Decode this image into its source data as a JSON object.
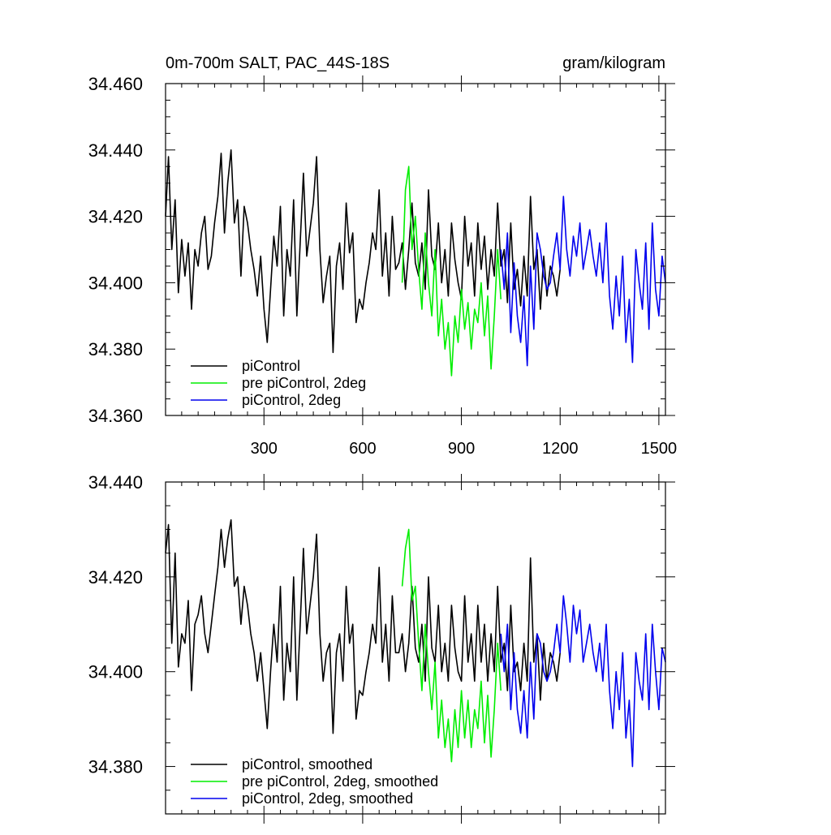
{
  "header": {
    "left": "0m-700m SALT, PAC_44S-18S",
    "right": "gram/kilogram"
  },
  "chart_data": [
    {
      "type": "line",
      "title": "0m-700m SALT, PAC_44S-18S",
      "units": "gram/kilogram",
      "xlim": [
        1,
        1520
      ],
      "ylim": [
        34.36,
        34.46
      ],
      "xticks": [
        300,
        600,
        900,
        1200,
        1500
      ],
      "xtick_labels": [
        "300",
        "600",
        "900",
        "1200",
        "1500"
      ],
      "yticks": [
        34.36,
        34.38,
        34.4,
        34.42,
        34.44,
        34.46
      ],
      "ytick_labels": [
        "34.360",
        "34.380",
        "34.400",
        "34.420",
        "34.440",
        "34.460"
      ],
      "grid": false,
      "legend_position": "bottom-left",
      "series": [
        {
          "name": "piControl",
          "color": "#000000",
          "x": [
            1,
            10,
            20,
            30,
            40,
            50,
            60,
            70,
            80,
            90,
            100,
            110,
            120,
            130,
            140,
            150,
            160,
            170,
            180,
            190,
            200,
            210,
            220,
            230,
            240,
            250,
            260,
            270,
            280,
            290,
            300,
            310,
            320,
            330,
            340,
            350,
            360,
            370,
            380,
            390,
            400,
            410,
            420,
            430,
            440,
            450,
            460,
            470,
            480,
            490,
            500,
            510,
            520,
            530,
            540,
            550,
            560,
            570,
            580,
            590,
            600,
            610,
            620,
            630,
            640,
            650,
            660,
            670,
            680,
            690,
            700,
            710,
            720,
            730,
            740,
            750,
            760,
            770,
            780,
            790,
            800,
            810,
            820,
            830,
            840,
            850,
            860,
            870,
            880,
            890,
            900,
            910,
            920,
            930,
            940,
            950,
            960,
            970,
            980,
            990,
            1000,
            1010,
            1020,
            1030,
            1040,
            1050,
            1060,
            1070,
            1080,
            1090,
            1100,
            1110,
            1120,
            1130,
            1140,
            1150,
            1160,
            1170,
            1180,
            1190,
            1200
          ],
          "y": [
            34.42,
            34.438,
            34.41,
            34.425,
            34.397,
            34.413,
            34.402,
            34.412,
            34.392,
            34.41,
            34.405,
            34.415,
            34.42,
            34.404,
            34.408,
            34.418,
            34.426,
            34.439,
            34.415,
            34.43,
            34.44,
            34.418,
            34.425,
            34.402,
            34.423,
            34.418,
            34.41,
            34.404,
            34.396,
            34.408,
            34.392,
            34.382,
            34.398,
            34.414,
            34.405,
            34.423,
            34.39,
            34.41,
            34.402,
            34.425,
            34.39,
            34.412,
            34.433,
            34.408,
            34.416,
            34.424,
            34.438,
            34.41,
            34.394,
            34.402,
            34.408,
            34.379,
            34.405,
            34.412,
            34.398,
            34.424,
            34.409,
            34.415,
            34.388,
            34.395,
            34.392,
            34.4,
            34.406,
            34.415,
            34.41,
            34.428,
            34.402,
            34.415,
            34.396,
            34.42,
            34.404,
            34.406,
            34.412,
            34.398,
            34.41,
            34.424,
            34.406,
            34.402,
            34.412,
            34.398,
            34.428,
            34.408,
            34.404,
            34.418,
            34.4,
            34.41,
            34.396,
            34.418,
            34.407,
            34.4,
            34.395,
            34.42,
            34.405,
            34.412,
            34.396,
            34.418,
            34.404,
            34.414,
            34.398,
            34.41,
            34.402,
            34.424,
            34.405,
            34.41,
            34.394,
            34.418,
            34.398,
            34.404,
            34.393,
            34.408,
            34.396,
            34.426,
            34.404,
            34.41,
            34.392,
            34.408,
            34.396,
            34.405,
            34.402,
            34.396,
            34.404
          ]
        },
        {
          "name": "pre piControl, 2deg",
          "color": "#00ee00",
          "x": [
            720,
            730,
            740,
            750,
            760,
            770,
            780,
            790,
            800,
            810,
            820,
            830,
            840,
            850,
            860,
            870,
            880,
            890,
            900,
            910,
            920,
            930,
            940,
            950,
            960,
            970,
            980,
            990,
            1000,
            1010,
            1020
          ],
          "y": [
            34.4,
            34.428,
            34.435,
            34.41,
            34.42,
            34.404,
            34.392,
            34.415,
            34.4,
            34.39,
            34.41,
            34.384,
            34.395,
            34.38,
            34.388,
            34.372,
            34.39,
            34.382,
            34.398,
            34.386,
            34.394,
            34.38,
            34.392,
            34.388,
            34.4,
            34.384,
            34.396,
            34.374,
            34.39,
            34.41,
            34.395
          ]
        },
        {
          "name": "piControl, 2deg",
          "color": "#0000ee",
          "x": [
            1020,
            1030,
            1040,
            1050,
            1060,
            1070,
            1080,
            1090,
            1100,
            1110,
            1120,
            1130,
            1140,
            1150,
            1160,
            1170,
            1180,
            1190,
            1200,
            1210,
            1220,
            1230,
            1240,
            1250,
            1260,
            1270,
            1280,
            1290,
            1300,
            1310,
            1320,
            1330,
            1340,
            1350,
            1360,
            1370,
            1380,
            1390,
            1400,
            1410,
            1420,
            1430,
            1440,
            1450,
            1460,
            1470,
            1480,
            1490,
            1500,
            1510,
            1520
          ],
          "y": [
            34.41,
            34.398,
            34.415,
            34.385,
            34.406,
            34.39,
            34.382,
            34.396,
            34.375,
            34.405,
            34.386,
            34.415,
            34.41,
            34.402,
            34.398,
            34.4,
            34.408,
            34.415,
            34.404,
            34.426,
            34.41,
            34.402,
            34.414,
            34.408,
            34.418,
            34.404,
            34.41,
            34.416,
            34.408,
            34.402,
            34.412,
            34.4,
            34.418,
            34.396,
            34.386,
            34.402,
            34.39,
            34.408,
            34.382,
            34.395,
            34.376,
            34.41,
            34.4,
            34.392,
            34.412,
            34.386,
            34.418,
            34.398,
            34.39,
            34.408,
            34.4
          ]
        }
      ]
    },
    {
      "type": "line",
      "xlim": [
        1,
        1520
      ],
      "ylim": [
        34.37,
        34.44
      ],
      "xticks": [
        300,
        600,
        900,
        1200,
        1500
      ],
      "yticks": [
        34.38,
        34.4,
        34.42,
        34.44
      ],
      "ytick_labels": [
        "34.380",
        "34.400",
        "34.420",
        "34.440"
      ],
      "grid": false,
      "legend_position": "bottom-left",
      "series": [
        {
          "name": "piControl, smoothed",
          "color": "#000000",
          "x": [
            1,
            10,
            20,
            30,
            40,
            50,
            60,
            70,
            80,
            90,
            100,
            110,
            120,
            130,
            140,
            150,
            160,
            170,
            180,
            190,
            200,
            210,
            220,
            230,
            240,
            250,
            260,
            270,
            280,
            290,
            300,
            310,
            320,
            330,
            340,
            350,
            360,
            370,
            380,
            390,
            400,
            410,
            420,
            430,
            440,
            450,
            460,
            470,
            480,
            490,
            500,
            510,
            520,
            530,
            540,
            550,
            560,
            570,
            580,
            590,
            600,
            610,
            620,
            630,
            640,
            650,
            660,
            670,
            680,
            690,
            700,
            710,
            720,
            730,
            740,
            750,
            760,
            770,
            780,
            790,
            800,
            810,
            820,
            830,
            840,
            850,
            860,
            870,
            880,
            890,
            900,
            910,
            920,
            930,
            940,
            950,
            960,
            970,
            980,
            990,
            1000,
            1010,
            1020,
            1030,
            1040,
            1050,
            1060,
            1070,
            1080,
            1090,
            1100,
            1110,
            1120,
            1130,
            1140,
            1150,
            1160,
            1170,
            1180,
            1190,
            1200
          ],
          "y": [
            34.425,
            34.431,
            34.406,
            34.425,
            34.401,
            34.408,
            34.406,
            34.415,
            34.396,
            34.41,
            34.412,
            34.416,
            34.408,
            34.404,
            34.41,
            34.416,
            34.422,
            34.43,
            34.422,
            34.428,
            34.432,
            34.418,
            34.42,
            34.41,
            34.418,
            34.414,
            34.408,
            34.404,
            34.398,
            34.404,
            34.396,
            34.388,
            34.4,
            34.41,
            34.402,
            34.418,
            34.394,
            34.406,
            34.4,
            34.42,
            34.394,
            34.41,
            34.426,
            34.408,
            34.414,
            34.42,
            34.429,
            34.408,
            34.398,
            34.404,
            34.406,
            34.387,
            34.404,
            34.408,
            34.398,
            34.418,
            34.406,
            34.41,
            34.39,
            34.396,
            34.395,
            34.4,
            34.404,
            34.41,
            34.406,
            34.422,
            34.402,
            34.41,
            34.398,
            34.416,
            34.404,
            34.404,
            34.408,
            34.4,
            34.406,
            34.418,
            34.405,
            34.402,
            34.41,
            34.398,
            34.42,
            34.405,
            34.402,
            34.414,
            34.4,
            34.406,
            34.398,
            34.414,
            34.405,
            34.4,
            34.398,
            34.416,
            34.402,
            34.408,
            34.398,
            34.414,
            34.402,
            34.41,
            34.398,
            34.408,
            34.4,
            34.418,
            34.402,
            34.406,
            34.396,
            34.414,
            34.4,
            34.402,
            34.396,
            34.406,
            34.398,
            34.424,
            34.402,
            34.408,
            34.394,
            34.406,
            34.398,
            34.404,
            34.402,
            34.398,
            34.404
          ]
        },
        {
          "name": "pre piControl, 2deg, smoothed",
          "color": "#00ee00",
          "x": [
            720,
            730,
            740,
            750,
            760,
            770,
            780,
            790,
            800,
            810,
            820,
            830,
            840,
            850,
            860,
            870,
            880,
            890,
            900,
            910,
            920,
            930,
            940,
            950,
            960,
            970,
            980,
            990,
            1000,
            1010,
            1020
          ],
          "y": [
            34.418,
            34.426,
            34.43,
            34.415,
            34.418,
            34.406,
            34.396,
            34.41,
            34.4,
            34.392,
            34.402,
            34.386,
            34.394,
            34.384,
            34.39,
            34.381,
            34.392,
            34.384,
            34.396,
            34.386,
            34.394,
            34.384,
            34.392,
            34.388,
            34.398,
            34.385,
            34.395,
            34.382,
            34.392,
            34.406,
            34.396
          ]
        },
        {
          "name": "piControl, 2deg, smoothed",
          "color": "#0000ee",
          "x": [
            1020,
            1030,
            1040,
            1050,
            1060,
            1070,
            1080,
            1090,
            1100,
            1110,
            1120,
            1130,
            1140,
            1150,
            1160,
            1170,
            1180,
            1190,
            1200,
            1210,
            1220,
            1230,
            1240,
            1250,
            1260,
            1270,
            1280,
            1290,
            1300,
            1310,
            1320,
            1330,
            1340,
            1350,
            1360,
            1370,
            1380,
            1390,
            1400,
            1410,
            1420,
            1430,
            1440,
            1450,
            1460,
            1470,
            1480,
            1490,
            1500,
            1510,
            1520
          ],
          "y": [
            34.408,
            34.4,
            34.41,
            34.392,
            34.404,
            34.392,
            34.387,
            34.396,
            34.386,
            34.402,
            34.39,
            34.408,
            34.406,
            34.4,
            34.398,
            34.4,
            34.404,
            34.41,
            34.404,
            34.416,
            34.41,
            34.402,
            34.414,
            34.408,
            34.413,
            34.402,
            34.406,
            34.41,
            34.404,
            34.4,
            34.406,
            34.398,
            34.41,
            34.396,
            34.388,
            34.4,
            34.392,
            34.404,
            34.386,
            34.394,
            34.38,
            34.404,
            34.398,
            34.394,
            34.408,
            34.392,
            34.41,
            34.4,
            34.392,
            34.405,
            34.402
          ]
        }
      ]
    }
  ]
}
